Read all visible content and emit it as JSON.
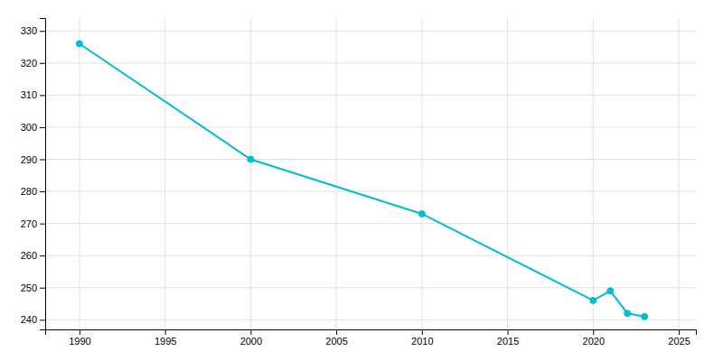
{
  "chart_data": {
    "type": "line",
    "x": [
      1990,
      2000,
      2010,
      2020,
      2021,
      2022,
      2023
    ],
    "values": [
      326,
      290,
      273,
      246,
      249,
      242,
      241
    ],
    "color": "#00BCD4",
    "marker": "circle",
    "xlim": [
      1988,
      2026
    ],
    "ylim": [
      237,
      334
    ],
    "xticks": [
      1990,
      1995,
      2000,
      2005,
      2010,
      2015,
      2020,
      2025
    ],
    "yticks": [
      240,
      250,
      260,
      270,
      280,
      290,
      300,
      310,
      320,
      330
    ],
    "grid": true
  }
}
